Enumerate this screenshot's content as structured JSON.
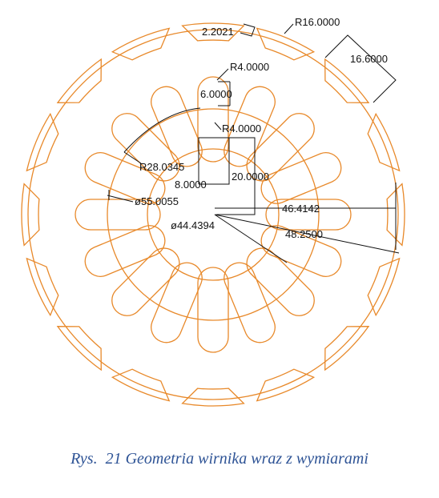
{
  "colors": {
    "geometry": "#e8892a",
    "dimension": "#111111",
    "caption": "#2f5496",
    "background": "#ffffff"
  },
  "dimensions": {
    "gap_width": "2.2021",
    "outer_radius": "R16.0000",
    "magnet_width": "16.6000",
    "slot_tip_radius": "R4.0000",
    "slot_width": "6.0000",
    "slot_base_radius": "R4.0000",
    "slot_circle_radius": "R28.0345",
    "rib_width": "8.0000",
    "rib_length": "20.0000",
    "slot_circle_diameter": "ø55.0055",
    "shaft_radius_span": "46.4142",
    "shaft_diameter": "ø44.4394",
    "outer_radius_span": "48.2500"
  },
  "caption": "Rys.  21 Geometria wirnika wraz z wymiarami"
}
